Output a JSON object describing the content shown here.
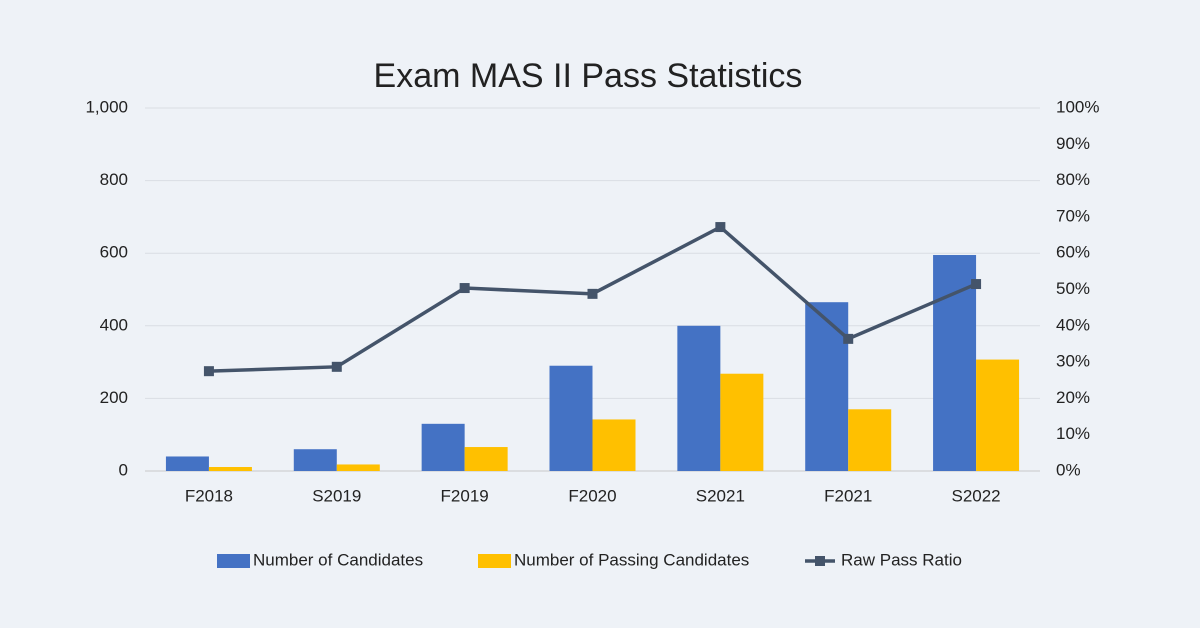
{
  "chart_data": {
    "type": "bar",
    "title": "Exam MAS II Pass Statistics",
    "categories": [
      "F2018",
      "S2019",
      "F2019",
      "F2020",
      "S2021",
      "F2021",
      "S2022"
    ],
    "series": [
      {
        "name": "Number of Candidates",
        "color": "#4472c4",
        "type": "bar",
        "values": [
          40,
          60,
          130,
          290,
          400,
          465,
          595
        ]
      },
      {
        "name": "Number of Passing Candidates",
        "color": "#ffc000",
        "type": "bar",
        "values": [
          11,
          18,
          66,
          142,
          268,
          170,
          307
        ]
      },
      {
        "name": "Raw Pass Ratio",
        "color": "#44546a",
        "type": "line",
        "axis": "y2",
        "values": [
          27.5,
          28.7,
          50.4,
          48.8,
          67.2,
          36.4,
          51.5
        ]
      }
    ],
    "ylim": [
      0,
      1000
    ],
    "yticks": [
      0,
      200,
      400,
      600,
      800,
      {
        "value": 1000,
        "label": "1,000"
      }
    ],
    "y2lim": [
      0,
      100
    ],
    "y2ticks": [
      {
        "value": 0,
        "label": "0%"
      },
      {
        "value": 10,
        "label": "10%"
      },
      {
        "value": 20,
        "label": "20%"
      },
      {
        "value": 30,
        "label": "30%"
      },
      {
        "value": 40,
        "label": "40%"
      },
      {
        "value": 50,
        "label": "50%"
      },
      {
        "value": 60,
        "label": "60%"
      },
      {
        "value": 70,
        "label": "70%"
      },
      {
        "value": 80,
        "label": "80%"
      },
      {
        "value": 90,
        "label": "90%"
      },
      {
        "value": 100,
        "label": "100%"
      }
    ],
    "grid": true,
    "legend": "bottom"
  }
}
